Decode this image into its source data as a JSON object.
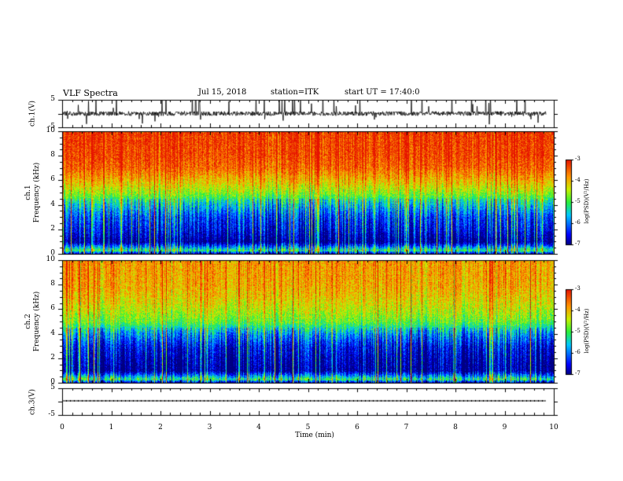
{
  "header": {
    "title": "VLF Spectra",
    "date": "Jul 15, 2018",
    "station": "station=ITK",
    "start": "start UT =  17:40:0"
  },
  "chart_data": [
    {
      "type": "line",
      "name": "channel-1-waveform",
      "ylabel": "ch.1(V)",
      "ylim": [
        -5,
        5
      ],
      "y_ticks": [
        "5",
        "-5"
      ],
      "baseline": 0,
      "noise": "dense spiky waveform with frequent excursions to the axis limits"
    },
    {
      "type": "heatmap",
      "name": "channel-1-spectrogram",
      "ylabel": "ch.1\nFrequency (kHz)",
      "ylim": [
        0,
        10
      ],
      "y_ticks": [
        "0",
        "2",
        "4",
        "6",
        "8",
        "10"
      ],
      "colorbar": {
        "label": "log(PSD)(V²/Hz)",
        "range": [
          -7,
          -3
        ],
        "ticks": [
          "-3",
          "-4",
          "-5",
          "-6",
          "-7"
        ]
      },
      "profile_khz_logpsd": [
        [
          0,
          -7
        ],
        [
          0.3,
          -5.0
        ],
        [
          1,
          -7
        ],
        [
          2,
          -6.5
        ],
        [
          3,
          -6.2
        ],
        [
          4,
          -5.5
        ],
        [
          5,
          -4.6
        ],
        [
          6,
          -4.0
        ],
        [
          7,
          -3.5
        ],
        [
          8,
          -3.3
        ],
        [
          10,
          -3.2
        ]
      ]
    },
    {
      "type": "heatmap",
      "name": "channel-2-spectrogram",
      "ylabel": "ch.2\nFrequency (kHz)",
      "ylim": [
        0,
        10
      ],
      "y_ticks": [
        "0",
        "2",
        "4",
        "6",
        "8",
        "10"
      ],
      "colorbar": {
        "label": "log(PSD)(V²/Hz)",
        "range": [
          -7,
          -3
        ],
        "ticks": [
          "-3",
          "-4",
          "-5",
          "-6",
          "-7"
        ]
      },
      "profile_khz_logpsd": [
        [
          0,
          -7
        ],
        [
          0.3,
          -5.0
        ],
        [
          1,
          -7
        ],
        [
          2,
          -6.8
        ],
        [
          3,
          -6.5
        ],
        [
          4,
          -5.8
        ],
        [
          5,
          -4.8
        ],
        [
          6,
          -4.4
        ],
        [
          7,
          -4.1
        ],
        [
          8,
          -3.9
        ],
        [
          10,
          -3.8
        ]
      ]
    },
    {
      "type": "line",
      "name": "channel-3-waveform",
      "ylabel": "ch.3(V)",
      "ylim": [
        -5,
        5
      ],
      "y_ticks": [
        "5",
        "-5"
      ],
      "baseline": 0,
      "noise": "flat line near 0 V"
    }
  ],
  "x_axis": {
    "label": "Time (min)",
    "range": [
      0,
      10
    ],
    "ticks": [
      "0",
      "1",
      "2",
      "3",
      "4",
      "5",
      "6",
      "7",
      "8",
      "9",
      "10"
    ]
  }
}
